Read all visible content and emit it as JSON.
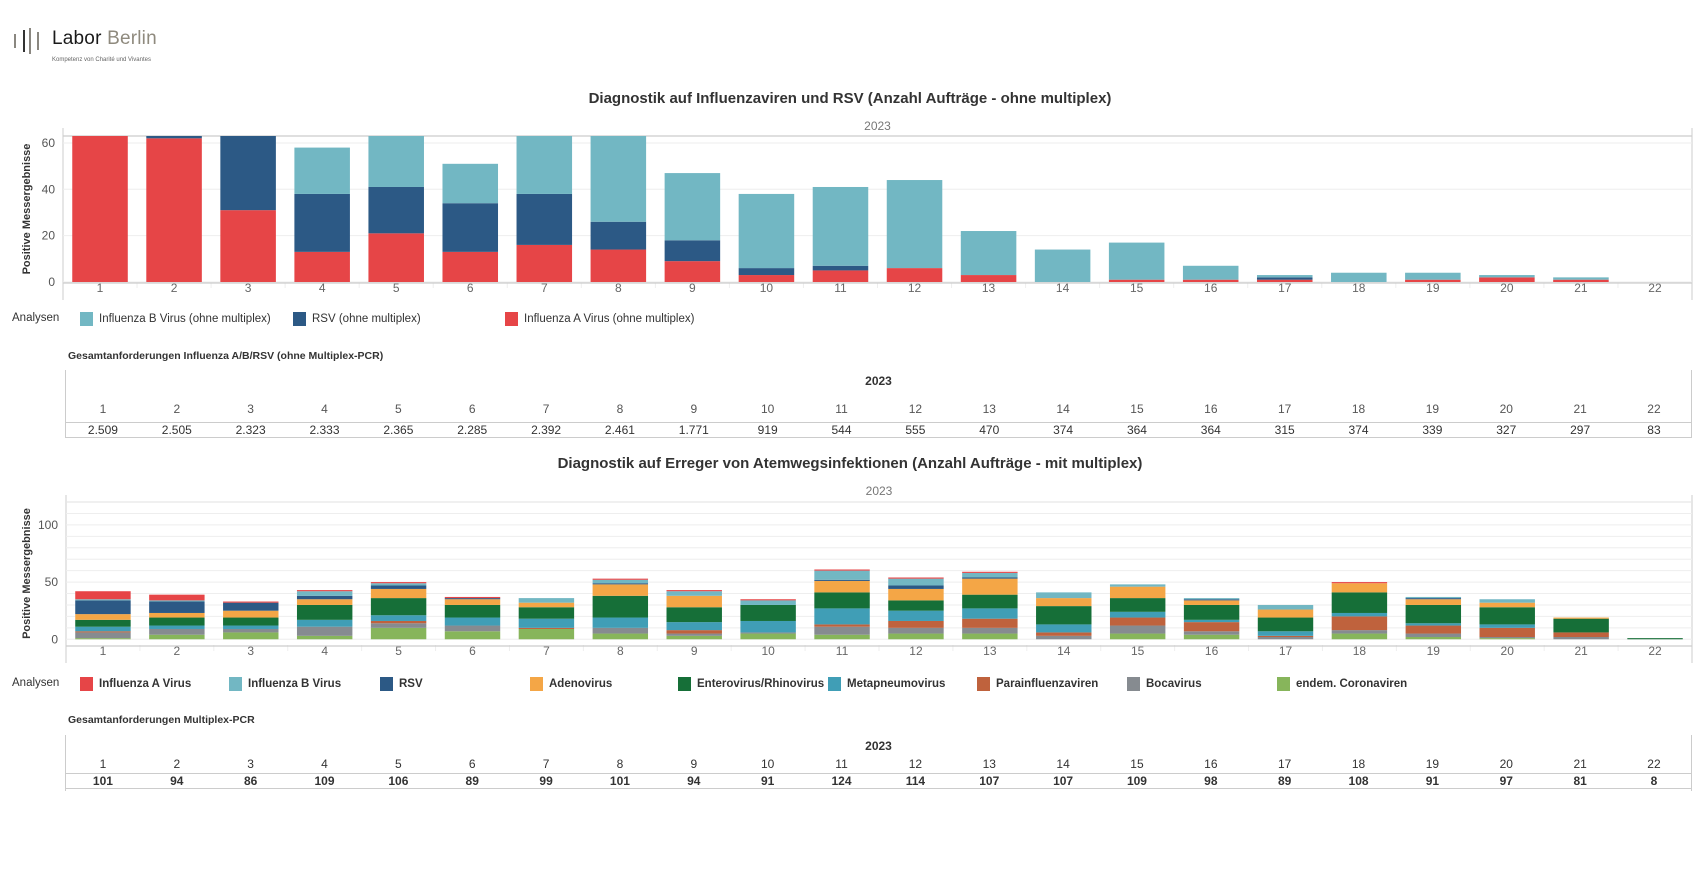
{
  "logo": {
    "word1": "Labor",
    "word2": "Berlin",
    "tagline": "Kompetenz von Charité und Vivantes"
  },
  "colors": {
    "influenza_a": "#e64547",
    "influenza_b": "#72b7c3",
    "rsv": "#2c5985",
    "adenovirus": "#f4a646",
    "enterovirus": "#166f38",
    "metapneumovirus": "#409eb6",
    "parainfluenza": "#bf623d",
    "bocavirus": "#868b90",
    "coronaviren": "#87b55b"
  },
  "chart_data": [
    {
      "type": "bar",
      "stacked": true,
      "title": "Diagnostik auf Influenzaviren und RSV (Anzahl Aufträge - ohne multiplex)",
      "header": "2023",
      "xlabel": "",
      "ylabel": "Positive Messergebnisse",
      "ylim": [
        0,
        63
      ],
      "yticks": [
        0,
        20,
        40,
        60
      ],
      "grid": true,
      "legend_title": "Analysen",
      "legend_position": "bottom-left",
      "categories": [
        "1",
        "2",
        "3",
        "4",
        "5",
        "6",
        "7",
        "8",
        "9",
        "10",
        "11",
        "12",
        "13",
        "14",
        "15",
        "16",
        "17",
        "18",
        "19",
        "20",
        "21",
        "22"
      ],
      "series": [
        {
          "name": "Influenza A Virus (ohne multiplex)",
          "color_key": "influenza_a",
          "values": [
            63,
            62,
            31,
            13,
            21,
            13,
            16,
            14,
            9,
            3,
            5,
            6,
            3,
            0,
            1,
            1,
            1,
            0,
            1,
            2,
            1,
            0
          ]
        },
        {
          "name": "RSV (ohne multiplex)",
          "color_key": "rsv",
          "values": [
            0,
            1,
            32,
            25,
            20,
            21,
            22,
            12,
            9,
            3,
            2,
            0,
            0,
            0,
            0,
            0,
            1,
            0,
            0,
            0,
            0,
            0
          ]
        },
        {
          "name": "Influenza B Virus (ohne multiplex)",
          "color_key": "influenza_b",
          "values": [
            0,
            0,
            0,
            20,
            22,
            17,
            25,
            37,
            29,
            32,
            34,
            38,
            19,
            14,
            16,
            6,
            1,
            4,
            3,
            1,
            1,
            0
          ]
        }
      ],
      "legend_order": [
        "Influenza B Virus (ohne multiplex)",
        "RSV (ohne multiplex)",
        "Influenza A Virus (ohne multiplex)"
      ]
    },
    {
      "type": "bar",
      "stacked": true,
      "title": "Diagnostik auf Erreger von Atemwegsinfektionen (Anzahl Aufträge - mit multiplex)",
      "header": "2023",
      "xlabel": "",
      "ylabel": "Positive Messergebnisse",
      "ylim": [
        -5,
        120
      ],
      "yticks": [
        0,
        50,
        100
      ],
      "grid": true,
      "legend_title": "Analysen",
      "legend_position": "bottom-left",
      "categories": [
        "1",
        "2",
        "3",
        "4",
        "5",
        "6",
        "7",
        "8",
        "9",
        "10",
        "11",
        "12",
        "13",
        "14",
        "15",
        "16",
        "17",
        "18",
        "19",
        "20",
        "21",
        "22"
      ],
      "series": [
        {
          "name": "endem. Coronaviren",
          "color_key": "coronaviren",
          "values": [
            1,
            4,
            6,
            3,
            10,
            7,
            9,
            5,
            3,
            5,
            4,
            5,
            5,
            0,
            5,
            4,
            0,
            5,
            2,
            1,
            0,
            0
          ]
        },
        {
          "name": "Bocavirus",
          "color_key": "bocavirus",
          "values": [
            5,
            5,
            3,
            8,
            4,
            5,
            0,
            5,
            2,
            1,
            7,
            5,
            5,
            3,
            7,
            3,
            2,
            3,
            3,
            1,
            2,
            0
          ]
        },
        {
          "name": "Parainfluenzaviren",
          "color_key": "parainfluenza",
          "values": [
            1,
            0,
            0,
            0,
            2,
            0,
            1,
            0,
            3,
            0,
            2,
            6,
            8,
            3,
            7,
            8,
            1,
            12,
            7,
            8,
            4,
            0
          ]
        },
        {
          "name": "Metapneumovirus",
          "color_key": "metapneumovirus",
          "values": [
            4,
            3,
            3,
            6,
            5,
            7,
            8,
            9,
            7,
            10,
            14,
            9,
            9,
            7,
            5,
            2,
            4,
            3,
            2,
            3,
            0,
            0
          ]
        },
        {
          "name": "Enterovirus/Rhinovirus",
          "color_key": "enterovirus",
          "values": [
            6,
            7,
            7,
            13,
            15,
            11,
            10,
            19,
            13,
            14,
            14,
            9,
            12,
            16,
            12,
            13,
            12,
            18,
            16,
            15,
            12,
            1
          ]
        },
        {
          "name": "Adenovirus",
          "color_key": "adenovirus",
          "values": [
            5,
            4,
            6,
            5,
            8,
            5,
            4,
            10,
            10,
            0,
            10,
            10,
            14,
            7,
            10,
            4,
            7,
            8,
            5,
            4,
            1,
            0
          ]
        },
        {
          "name": "RSV",
          "color_key": "rsv",
          "values": [
            12,
            10,
            7,
            3,
            3,
            1,
            0,
            1,
            0,
            0,
            1,
            3,
            1,
            0,
            0,
            1,
            0,
            0,
            1,
            0,
            0,
            0
          ]
        },
        {
          "name": "Influenza B Virus",
          "color_key": "influenza_b",
          "values": [
            1,
            1,
            0,
            4,
            2,
            0,
            4,
            3,
            4,
            4,
            8,
            6,
            4,
            5,
            2,
            1,
            4,
            0,
            1,
            3,
            0,
            0
          ]
        },
        {
          "name": "Influenza A Virus",
          "color_key": "influenza_a",
          "values": [
            7,
            5,
            1,
            1,
            1,
            1,
            0,
            1,
            1,
            1,
            1,
            1,
            1,
            0,
            0,
            0,
            0,
            1,
            0,
            0,
            0,
            0
          ]
        }
      ],
      "legend_order": [
        "Influenza A Virus",
        "Influenza B Virus",
        "RSV",
        "Adenovirus",
        "Enterovirus/Rhinovirus",
        "Metapneumovirus",
        "Parainfluenzaviren",
        "Bocavirus",
        "endem. Coronaviren"
      ]
    }
  ],
  "table1": {
    "title": "Gesamtanforderungen Influenza A/B/RSV (ohne Multiplex-PCR)",
    "year": "2023",
    "weeks": [
      "1",
      "2",
      "3",
      "4",
      "5",
      "6",
      "7",
      "8",
      "9",
      "10",
      "11",
      "12",
      "13",
      "14",
      "15",
      "16",
      "17",
      "18",
      "19",
      "20",
      "21",
      "22"
    ],
    "values": [
      "2.509",
      "2.505",
      "2.323",
      "2.333",
      "2.365",
      "2.285",
      "2.392",
      "2.461",
      "1.771",
      "919",
      "544",
      "555",
      "470",
      "374",
      "364",
      "364",
      "315",
      "374",
      "339",
      "327",
      "297",
      "83"
    ]
  },
  "table2": {
    "title": "Gesamtanforderungen Multiplex-PCR",
    "year": "2023",
    "weeks": [
      "1",
      "2",
      "3",
      "4",
      "5",
      "6",
      "7",
      "8",
      "9",
      "10",
      "11",
      "12",
      "13",
      "14",
      "15",
      "16",
      "17",
      "18",
      "19",
      "20",
      "21",
      "22"
    ],
    "values": [
      "101",
      "94",
      "86",
      "109",
      "106",
      "89",
      "99",
      "101",
      "94",
      "91",
      "124",
      "114",
      "107",
      "107",
      "109",
      "98",
      "89",
      "108",
      "91",
      "97",
      "81",
      "8"
    ]
  }
}
